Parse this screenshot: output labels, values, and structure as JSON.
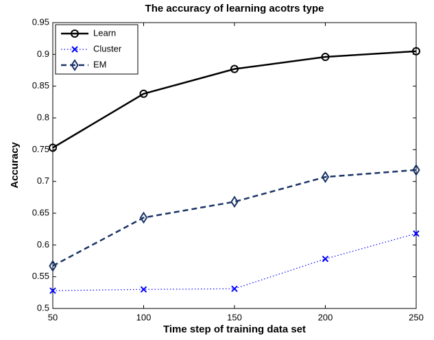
{
  "chart_data": {
    "type": "line",
    "title": "The accuracy of learning acotrs type",
    "x_label": "Time step of training data set",
    "y_label": "Accuracy",
    "x": [
      50,
      100,
      150,
      200,
      250
    ],
    "xlim": [
      50,
      250
    ],
    "xticks": [
      50,
      100,
      150,
      200,
      250
    ],
    "ylim": [
      0.5,
      0.95
    ],
    "yticks": [
      0.5,
      0.55,
      0.6,
      0.65,
      0.7,
      0.75,
      0.8,
      0.85,
      0.9,
      0.95
    ],
    "legend": "upper-left",
    "series": [
      {
        "name": "Learn",
        "color": "#000000",
        "linestyle": "solid",
        "marker": "circle",
        "values": [
          0.753,
          0.838,
          0.877,
          0.896,
          0.905
        ]
      },
      {
        "name": "Cluster",
        "color": "#0000ff",
        "linestyle": "dotted",
        "marker": "x",
        "values": [
          0.528,
          0.53,
          0.531,
          0.578,
          0.618
        ]
      },
      {
        "name": "EM",
        "color": "#1a3366",
        "linestyle": "dashed",
        "marker": "diamond",
        "values": [
          0.567,
          0.643,
          0.668,
          0.707,
          0.718
        ]
      }
    ]
  }
}
